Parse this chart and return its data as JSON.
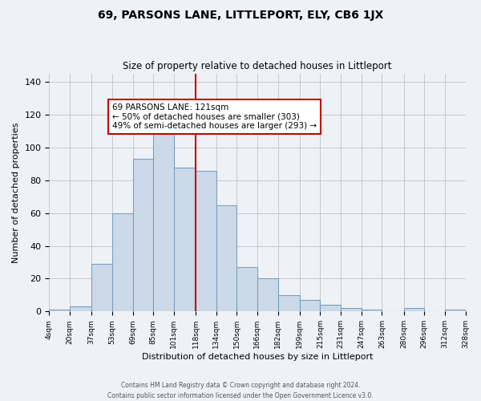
{
  "title": "69, PARSONS LANE, LITTLEPORT, ELY, CB6 1JX",
  "subtitle": "Size of property relative to detached houses in Littleport",
  "xlabel": "Distribution of detached houses by size in Littleport",
  "ylabel": "Number of detached properties",
  "bar_color": "#ccd9e8",
  "bar_edge_color": "#7aa0be",
  "background_color": "#eef2f7",
  "grid_color": "#c8c8c8",
  "vline_x": 118,
  "vline_color": "#cc0000",
  "bin_edges": [
    4,
    20,
    37,
    53,
    69,
    85,
    101,
    118,
    134,
    150,
    166,
    182,
    199,
    215,
    231,
    247,
    263,
    280,
    296,
    312,
    328
  ],
  "bin_labels": [
    "4sqm",
    "20sqm",
    "37sqm",
    "53sqm",
    "69sqm",
    "85sqm",
    "101sqm",
    "118sqm",
    "134sqm",
    "150sqm",
    "166sqm",
    "182sqm",
    "199sqm",
    "215sqm",
    "231sqm",
    "247sqm",
    "263sqm",
    "280sqm",
    "296sqm",
    "312sqm",
    "328sqm"
  ],
  "counts": [
    1,
    3,
    29,
    60,
    93,
    109,
    88,
    86,
    65,
    27,
    20,
    10,
    7,
    4,
    2,
    1,
    0,
    2,
    0,
    1
  ],
  "ylim": [
    0,
    145
  ],
  "yticks": [
    0,
    20,
    40,
    60,
    80,
    100,
    120,
    140
  ],
  "annotation_title": "69 PARSONS LANE: 121sqm",
  "annotation_line1": "← 50% of detached houses are smaller (303)",
  "annotation_line2": "49% of semi-detached houses are larger (293) →",
  "annotation_box_color": "#ffffff",
  "annotation_border_color": "#cc0000",
  "footer1": "Contains HM Land Registry data © Crown copyright and database right 2024.",
  "footer2": "Contains public sector information licensed under the Open Government Licence v3.0."
}
